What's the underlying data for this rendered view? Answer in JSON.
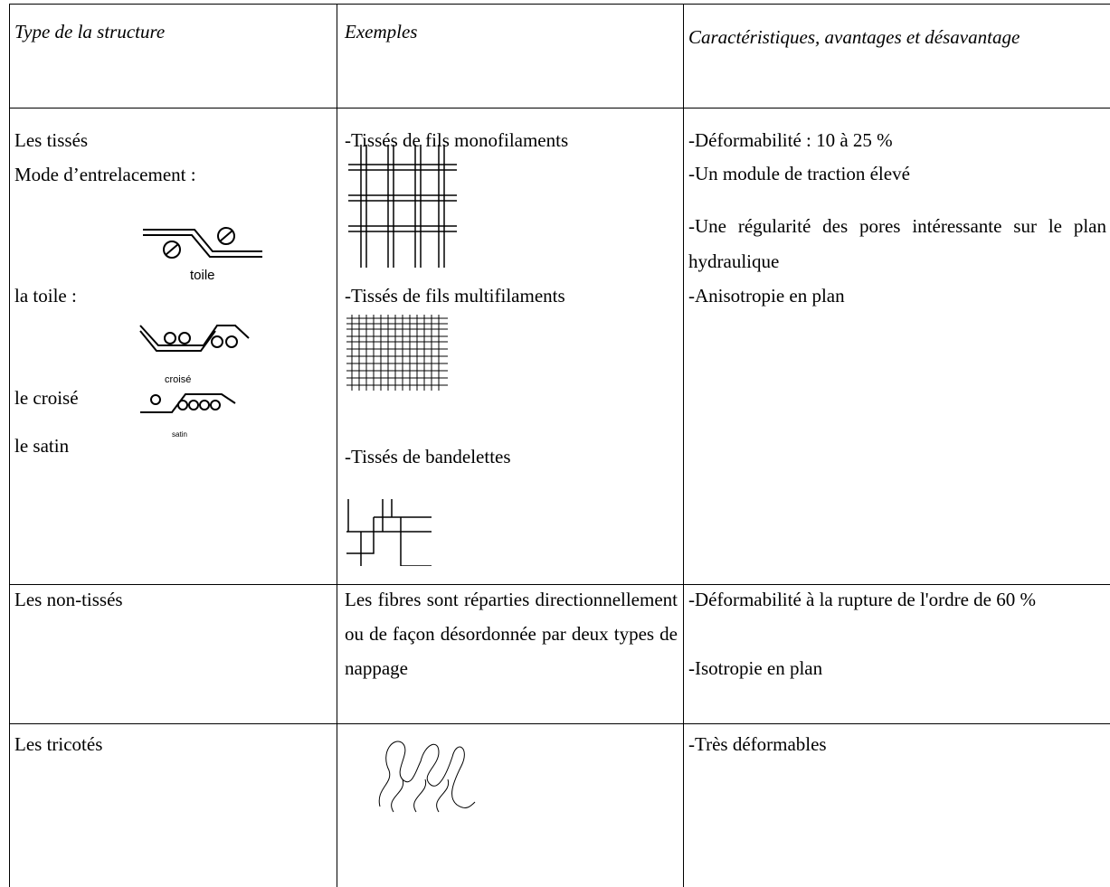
{
  "table": {
    "header": [
      "Type de la structure",
      "Exemples",
      "Caractéristiques, avantages et désavantage"
    ],
    "rows": [
      {
        "structure": {
          "title": "Les tissés",
          "subtitle": "Mode d’entrelacement :",
          "modes": [
            {
              "label": "la toile :",
              "caption": "toile"
            },
            {
              "label": "le croisé",
              "caption": "croisé"
            },
            {
              "label": "le satin",
              "caption": "satin"
            }
          ]
        },
        "examples": [
          "-Tissés de fils monofilaments",
          "-Tissés de fils multifilaments",
          "-Tissés de bandelettes"
        ],
        "features": [
          "-Déformabilité : 10 à 25 %",
          "-Un module de traction élevé",
          "-Une régularité des pores intéressante sur le plan hydraulique",
          "-Anisotropie en plan"
        ]
      },
      {
        "structure": {
          "title": "Les non-tissés"
        },
        "examples": [
          "Les fibres sont réparties directionnellement ou de façon désordonnée par deux types de nappage"
        ],
        "features": [
          "-Déformabilité à la rupture de l'ordre de 60 %",
          "-Isotropie en plan"
        ]
      },
      {
        "structure": {
          "title": "Les tricotés"
        },
        "examples": [],
        "features": [
          "-Très déformables"
        ]
      }
    ]
  }
}
